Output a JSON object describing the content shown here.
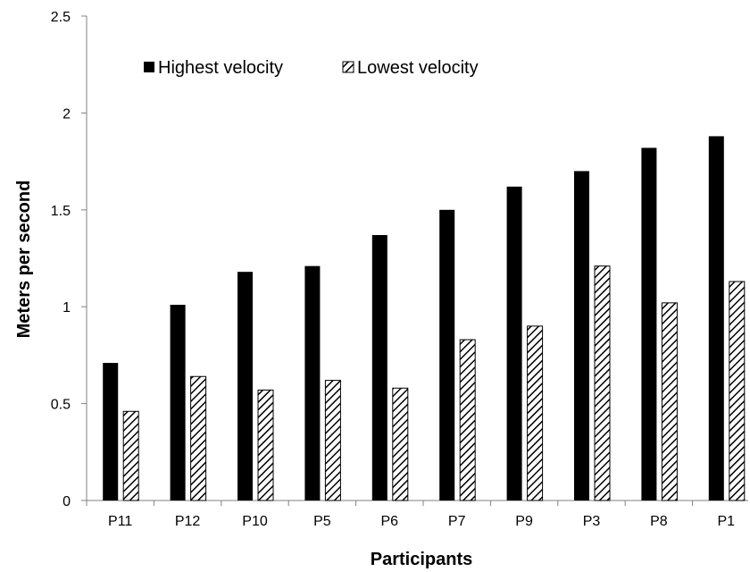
{
  "chart_data": {
    "type": "bar",
    "title": "",
    "xlabel": "Participants",
    "ylabel": "Meters per second",
    "ylim": [
      0,
      2.5
    ],
    "yticks": [
      "0",
      "0.5",
      "1",
      "1.5",
      "2",
      "2.5"
    ],
    "categories": [
      "P11",
      "P12",
      "P10",
      "P5",
      "P6",
      "P7",
      "P9",
      "P3",
      "P8",
      "P1"
    ],
    "series": [
      {
        "name": "Highest velocity",
        "color": "#000000",
        "pattern": "solid",
        "values": [
          0.71,
          1.01,
          1.18,
          1.21,
          1.37,
          1.5,
          1.62,
          1.7,
          1.82,
          1.88
        ]
      },
      {
        "name": "Lowest velocity",
        "color": "#000000",
        "pattern": "diagonal-hatch",
        "values": [
          0.46,
          0.64,
          0.57,
          0.62,
          0.58,
          0.83,
          0.9,
          1.21,
          1.02,
          1.13
        ]
      }
    ],
    "legend": "top-left",
    "grid": false
  }
}
